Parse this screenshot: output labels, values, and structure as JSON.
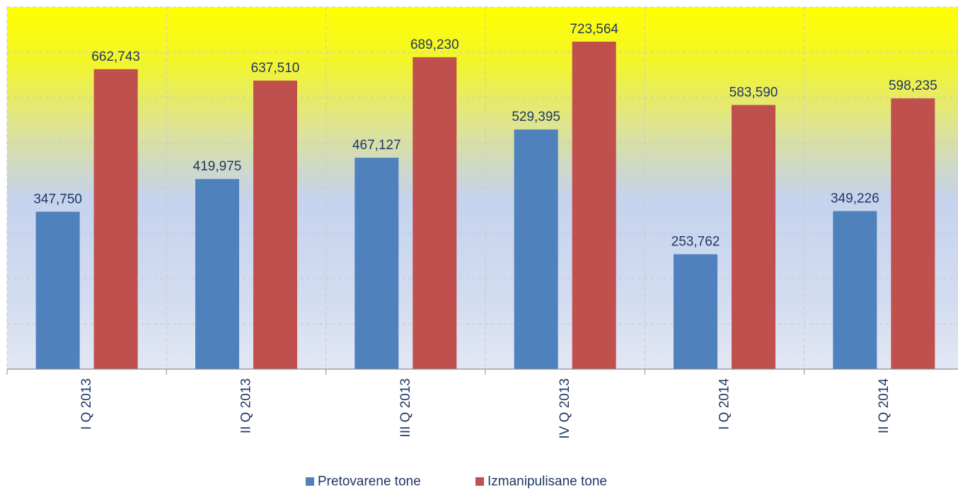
{
  "chart_data": {
    "type": "bar",
    "categories": [
      "I Q 2013",
      "II Q 2013",
      "III Q 2013",
      "IV Q 2013",
      "I Q 2014",
      "II Q 2014"
    ],
    "series": [
      {
        "name": "Pretovarene tone",
        "color": "#4f81bd",
        "values": [
          347750,
          419975,
          467127,
          529395,
          253762,
          349226
        ],
        "labels": [
          "347,750",
          "419,975",
          "467,127",
          "529,395",
          "253,762",
          "349,226"
        ]
      },
      {
        "name": "Izmanipulisane tone",
        "color": "#c0504d",
        "values": [
          662743,
          637510,
          689230,
          723564,
          583590,
          598235
        ],
        "labels": [
          "662,743",
          "637,510",
          "689,230",
          "723,564",
          "583,590",
          "598,235"
        ]
      }
    ],
    "ylim": [
      0,
      800000
    ],
    "grid": true,
    "legend": "bottom-center",
    "background_gradient": [
      "#ffff00",
      "#c5d3ee",
      "#e2e7f3"
    ]
  }
}
